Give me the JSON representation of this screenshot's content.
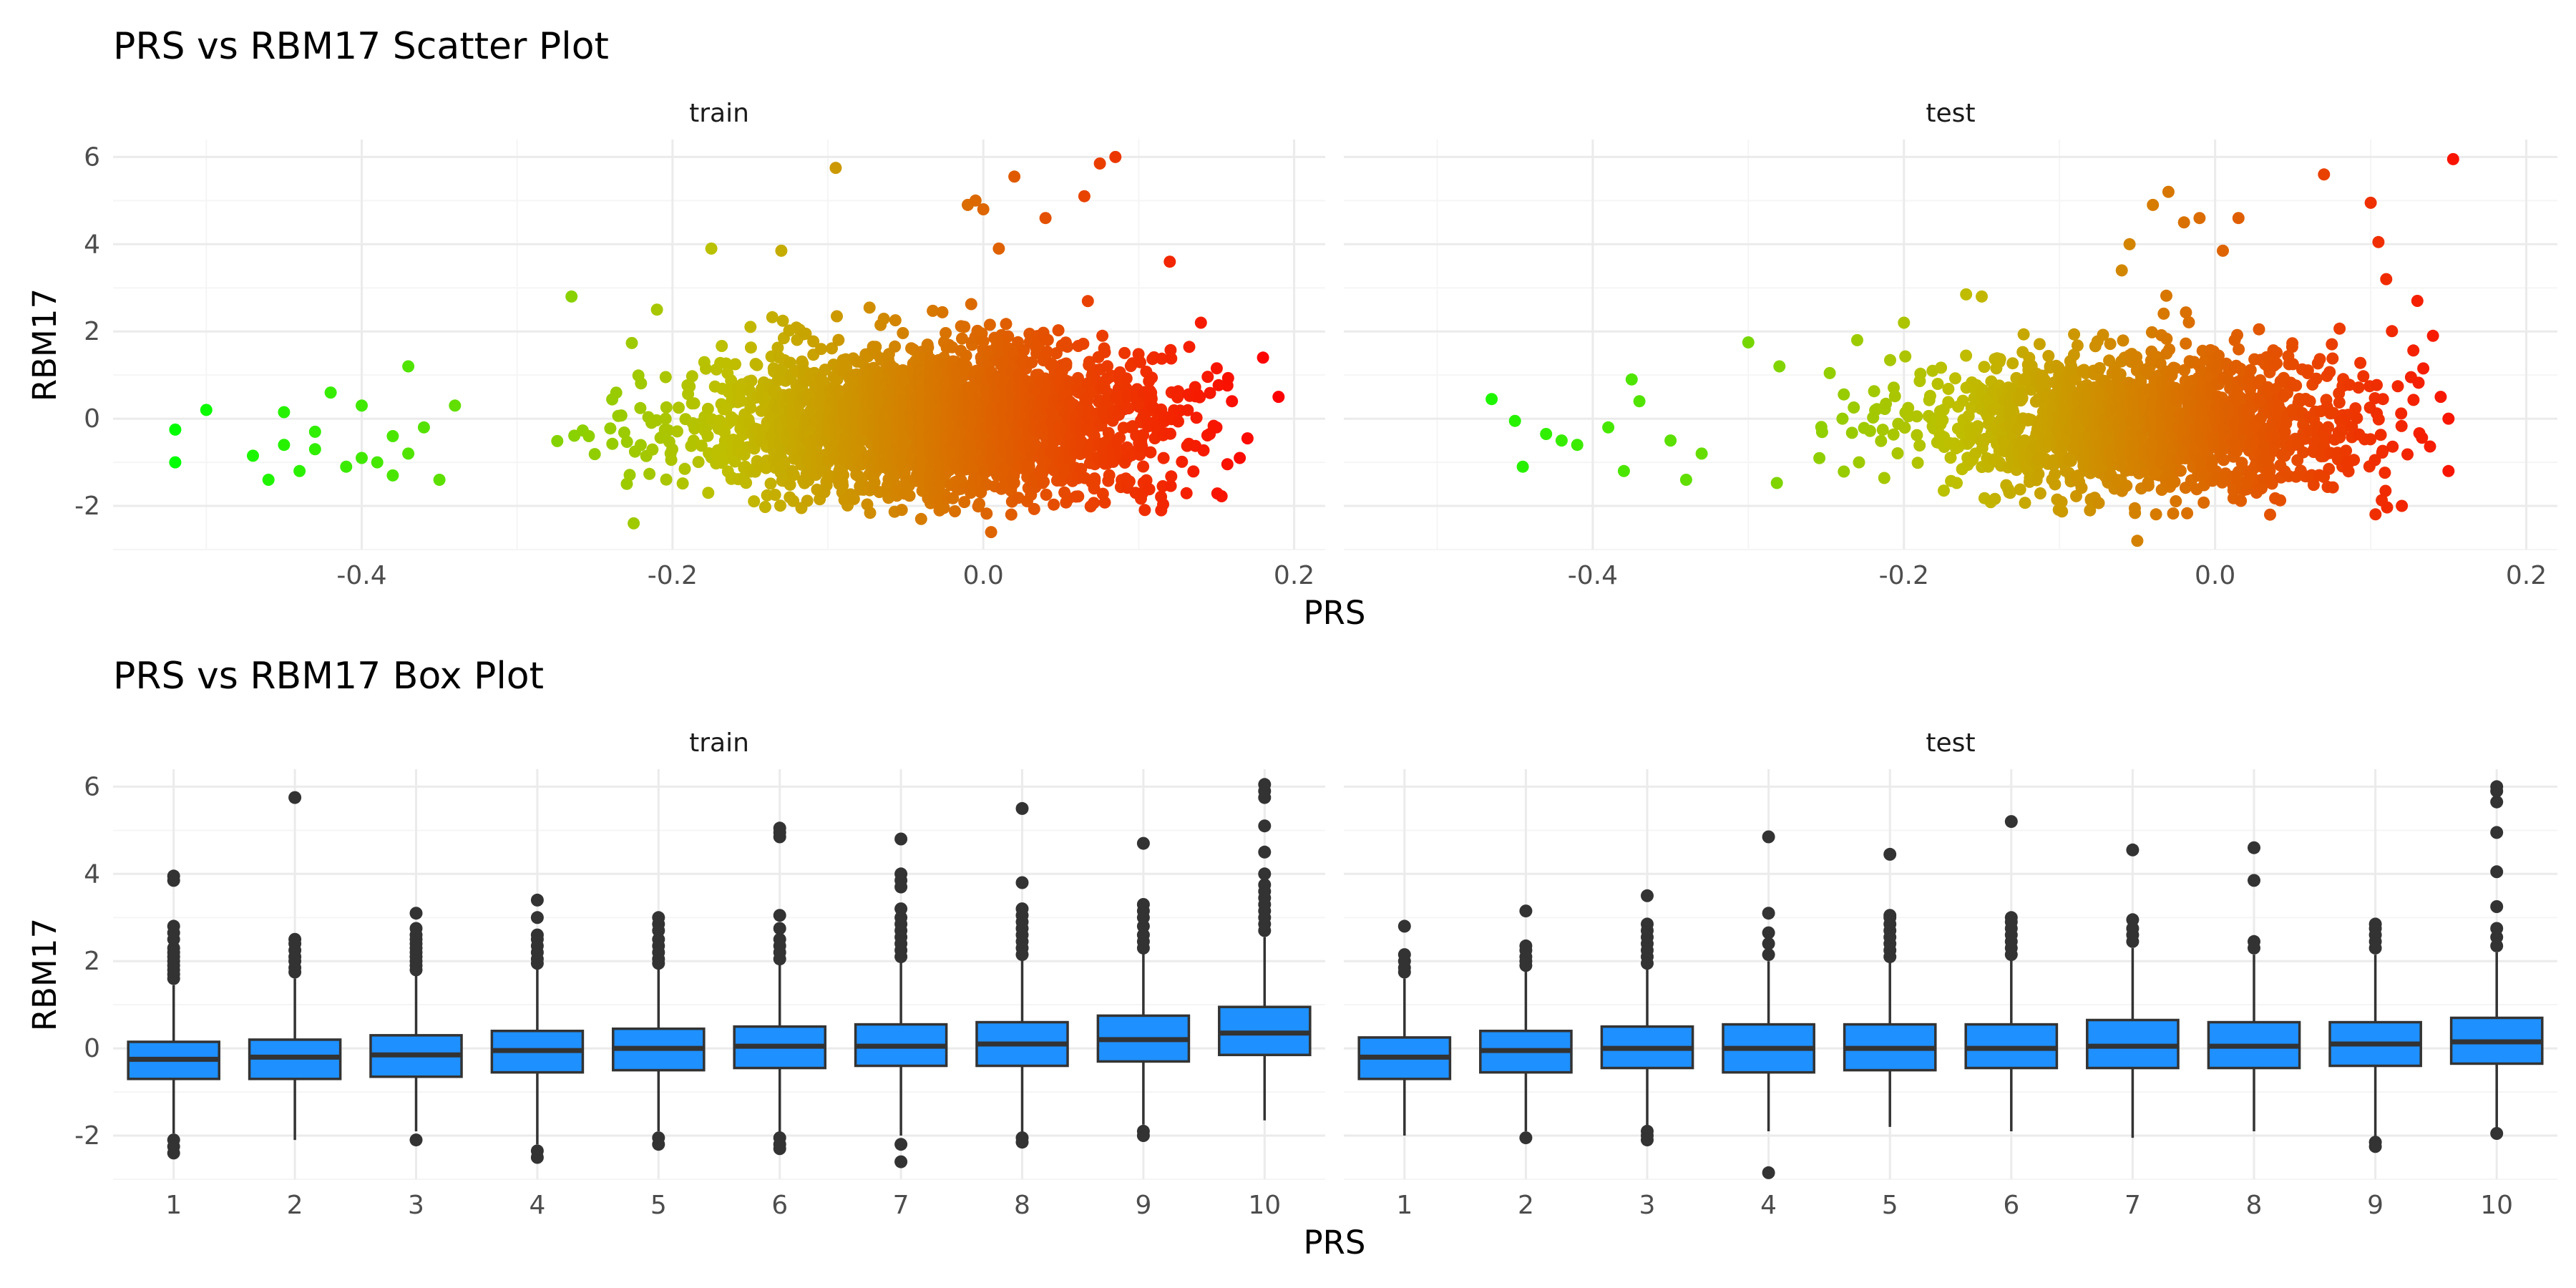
{
  "figure": {
    "scatter_title": "PRS vs RBM17 Scatter Plot",
    "box_title": "PRS vs RBM17 Box Plot",
    "facets": [
      "train",
      "test"
    ],
    "xlabel": "PRS",
    "ylabel": "RBM17"
  },
  "colors": {
    "box_fill": "#1E90FF",
    "box_line": "#333333",
    "grid_major": "#EBEBEB",
    "grid_minor": "#F5F5F5",
    "gradient_low": "#00FF00",
    "gradient_mid": "#BFBF00",
    "gradient_high": "#FF0000"
  },
  "chart_data": [
    {
      "type": "scatter",
      "title": "PRS vs RBM17 Scatter Plot",
      "xlabel": "PRS",
      "ylabel": "RBM17",
      "xlim": [
        -0.56,
        0.22
      ],
      "ylim": [
        -3.0,
        6.4
      ],
      "x_ticks": [
        -0.4,
        -0.2,
        0.0,
        0.2
      ],
      "x_tick_labels": [
        "-0.4",
        "-0.2",
        "0.0",
        "0.2"
      ],
      "y_ticks": [
        -2,
        0,
        2,
        4,
        6
      ],
      "y_tick_labels": [
        "-2",
        "0",
        "2",
        "4",
        "6"
      ],
      "grid": true,
      "legend": "none",
      "color_encoding": "gradient green to red by PRS",
      "facets": [
        {
          "name": "train",
          "cloud": {
            "x_mean": -0.03,
            "x_sd": 0.075,
            "x_min": -0.36,
            "x_max": 0.16,
            "y_mean": -0.1,
            "y_sd": 0.75,
            "y_min": -2.2,
            "y_max": 3.1,
            "count": 2600
          },
          "points": [
            {
              "x": -0.52,
              "y": -0.25
            },
            {
              "x": -0.52,
              "y": -1.0
            },
            {
              "x": -0.5,
              "y": 0.2
            },
            {
              "x": -0.47,
              "y": -0.85
            },
            {
              "x": -0.46,
              "y": -1.4
            },
            {
              "x": -0.45,
              "y": -0.6
            },
            {
              "x": -0.45,
              "y": 0.15
            },
            {
              "x": -0.44,
              "y": -1.2
            },
            {
              "x": -0.43,
              "y": -0.3
            },
            {
              "x": -0.43,
              "y": -0.7
            },
            {
              "x": -0.42,
              "y": 0.6
            },
            {
              "x": -0.41,
              "y": -1.1
            },
            {
              "x": -0.4,
              "y": 0.3
            },
            {
              "x": -0.4,
              "y": -0.9
            },
            {
              "x": -0.39,
              "y": -1.0
            },
            {
              "x": -0.38,
              "y": -0.4
            },
            {
              "x": -0.38,
              "y": -1.3
            },
            {
              "x": -0.37,
              "y": 1.2
            },
            {
              "x": -0.37,
              "y": -0.8
            },
            {
              "x": -0.36,
              "y": -0.2
            },
            {
              "x": -0.35,
              "y": -1.4
            },
            {
              "x": -0.34,
              "y": 0.3
            },
            {
              "x": -0.265,
              "y": 2.8
            },
            {
              "x": -0.225,
              "y": -2.4
            },
            {
              "x": -0.21,
              "y": 2.5
            },
            {
              "x": -0.175,
              "y": 3.9
            },
            {
              "x": -0.13,
              "y": 3.85
            },
            {
              "x": -0.095,
              "y": 5.75
            },
            {
              "x": -0.04,
              "y": -2.3
            },
            {
              "x": -0.01,
              "y": 4.9
            },
            {
              "x": -0.005,
              "y": 5.0
            },
            {
              "x": 0.0,
              "y": 4.8
            },
            {
              "x": 0.005,
              "y": -2.6
            },
            {
              "x": 0.01,
              "y": 3.9
            },
            {
              "x": 0.02,
              "y": 5.55
            },
            {
              "x": 0.04,
              "y": 4.6
            },
            {
              "x": 0.065,
              "y": 5.1
            },
            {
              "x": 0.075,
              "y": 5.85
            },
            {
              "x": 0.085,
              "y": 6.0
            },
            {
              "x": 0.12,
              "y": 3.6
            },
            {
              "x": 0.14,
              "y": 2.2
            },
            {
              "x": 0.15,
              "y": -0.2
            },
            {
              "x": 0.16,
              "y": 0.4
            },
            {
              "x": 0.165,
              "y": -0.9
            },
            {
              "x": 0.17,
              "y": -0.45
            },
            {
              "x": 0.18,
              "y": 1.4
            },
            {
              "x": 0.19,
              "y": 0.5
            }
          ]
        },
        {
          "name": "test",
          "cloud": {
            "x_mean": -0.04,
            "x_sd": 0.07,
            "x_min": -0.3,
            "x_max": 0.14,
            "y_mean": -0.1,
            "y_sd": 0.75,
            "y_min": -2.2,
            "y_max": 3.1,
            "count": 1600
          },
          "points": [
            {
              "x": -0.465,
              "y": 0.45
            },
            {
              "x": -0.45,
              "y": -0.05
            },
            {
              "x": -0.445,
              "y": -1.1
            },
            {
              "x": -0.43,
              "y": -0.35
            },
            {
              "x": -0.42,
              "y": -0.5
            },
            {
              "x": -0.41,
              "y": -0.6
            },
            {
              "x": -0.39,
              "y": -0.2
            },
            {
              "x": -0.38,
              "y": -1.2
            },
            {
              "x": -0.375,
              "y": 0.9
            },
            {
              "x": -0.37,
              "y": 0.4
            },
            {
              "x": -0.35,
              "y": -0.5
            },
            {
              "x": -0.34,
              "y": -1.4
            },
            {
              "x": -0.33,
              "y": -0.8
            },
            {
              "x": -0.3,
              "y": 1.75
            },
            {
              "x": -0.28,
              "y": 1.2
            },
            {
              "x": -0.23,
              "y": 1.8
            },
            {
              "x": -0.2,
              "y": 2.2
            },
            {
              "x": -0.16,
              "y": 2.85
            },
            {
              "x": -0.15,
              "y": 2.8
            },
            {
              "x": -0.06,
              "y": 3.4
            },
            {
              "x": -0.055,
              "y": 4.0
            },
            {
              "x": -0.04,
              "y": 4.9
            },
            {
              "x": -0.03,
              "y": 5.2
            },
            {
              "x": -0.02,
              "y": 4.5
            },
            {
              "x": -0.01,
              "y": 4.6
            },
            {
              "x": 0.005,
              "y": 3.85
            },
            {
              "x": 0.015,
              "y": 4.6
            },
            {
              "x": -0.05,
              "y": -2.8
            },
            {
              "x": 0.07,
              "y": 5.6
            },
            {
              "x": 0.1,
              "y": 4.95
            },
            {
              "x": 0.105,
              "y": 4.05
            },
            {
              "x": 0.11,
              "y": 3.2
            },
            {
              "x": 0.13,
              "y": 2.7
            },
            {
              "x": 0.14,
              "y": 1.9
            },
            {
              "x": 0.145,
              "y": 0.5
            },
            {
              "x": 0.15,
              "y": -1.2
            },
            {
              "x": 0.15,
              "y": 0.0
            },
            {
              "x": 0.12,
              "y": -2.0
            },
            {
              "x": 0.153,
              "y": 5.95
            }
          ]
        }
      ]
    },
    {
      "type": "box",
      "title": "PRS vs RBM17 Box Plot",
      "xlabel": "PRS",
      "ylabel": "RBM17",
      "categories": [
        "1",
        "2",
        "3",
        "4",
        "5",
        "6",
        "7",
        "8",
        "9",
        "10"
      ],
      "ylim": [
        -3.0,
        6.4
      ],
      "y_ticks": [
        -2,
        0,
        2,
        4,
        6
      ],
      "y_tick_labels": [
        "-2",
        "0",
        "2",
        "4",
        "6"
      ],
      "grid": true,
      "facets": [
        {
          "name": "train",
          "boxes": [
            {
              "category": "1",
              "q1": -0.7,
              "median": -0.25,
              "q3": 0.15,
              "lower_whisker": -1.95,
              "upper_whisker": 1.45,
              "outliers": [
                -2.1,
                -2.25,
                -2.4,
                1.6,
                1.7,
                1.8,
                1.9,
                2.0,
                2.1,
                2.2,
                2.3,
                2.5,
                2.65,
                2.8,
                3.85,
                3.95
              ]
            },
            {
              "category": "2",
              "q1": -0.7,
              "median": -0.2,
              "q3": 0.2,
              "lower_whisker": -2.1,
              "upper_whisker": 1.6,
              "outliers": [
                1.75,
                1.85,
                2.0,
                2.1,
                2.25,
                2.4,
                2.5,
                5.75
              ]
            },
            {
              "category": "3",
              "q1": -0.65,
              "median": -0.15,
              "q3": 0.3,
              "lower_whisker": -1.9,
              "upper_whisker": 1.7,
              "outliers": [
                -2.1,
                1.8,
                1.9,
                2.0,
                2.1,
                2.2,
                2.3,
                2.4,
                2.5,
                2.6,
                2.75,
                3.1
              ]
            },
            {
              "category": "4",
              "q1": -0.55,
              "median": -0.05,
              "q3": 0.4,
              "lower_whisker": -2.2,
              "upper_whisker": 1.85,
              "outliers": [
                -2.35,
                -2.5,
                1.95,
                2.05,
                2.2,
                2.35,
                2.5,
                2.6,
                3.0,
                3.4
              ]
            },
            {
              "category": "5",
              "q1": -0.5,
              "median": 0.0,
              "q3": 0.45,
              "lower_whisker": -1.9,
              "upper_whisker": 1.85,
              "outliers": [
                -2.05,
                -2.2,
                1.95,
                2.05,
                2.2,
                2.35,
                2.5,
                2.7,
                2.85,
                3.0
              ]
            },
            {
              "category": "6",
              "q1": -0.45,
              "median": 0.05,
              "q3": 0.5,
              "lower_whisker": -1.95,
              "upper_whisker": 1.95,
              "outliers": [
                -2.05,
                -2.2,
                -2.3,
                2.05,
                2.2,
                2.35,
                2.5,
                2.75,
                3.05,
                4.85,
                4.95,
                5.05
              ]
            },
            {
              "category": "7",
              "q1": -0.4,
              "median": 0.05,
              "q3": 0.55,
              "lower_whisker": -2.0,
              "upper_whisker": 2.0,
              "outliers": [
                -2.2,
                -2.6,
                2.1,
                2.25,
                2.4,
                2.55,
                2.7,
                2.85,
                3.0,
                3.2,
                3.7,
                3.85,
                4.0,
                4.8
              ]
            },
            {
              "category": "8",
              "q1": -0.4,
              "median": 0.1,
              "q3": 0.6,
              "lower_whisker": -1.95,
              "upper_whisker": 2.05,
              "outliers": [
                -2.05,
                -2.15,
                2.15,
                2.3,
                2.45,
                2.6,
                2.75,
                2.9,
                3.05,
                3.2,
                3.8,
                5.5
              ]
            },
            {
              "category": "9",
              "q1": -0.3,
              "median": 0.2,
              "q3": 0.75,
              "lower_whisker": -1.75,
              "upper_whisker": 2.2,
              "outliers": [
                -1.9,
                -2.0,
                2.3,
                2.45,
                2.6,
                2.8,
                3.0,
                3.15,
                3.3,
                4.7
              ]
            },
            {
              "category": "10",
              "q1": -0.15,
              "median": 0.35,
              "q3": 0.95,
              "lower_whisker": -1.65,
              "upper_whisker": 2.55,
              "outliers": [
                2.7,
                2.85,
                3.0,
                3.15,
                3.3,
                3.45,
                3.6,
                3.75,
                4.0,
                4.5,
                5.1,
                5.75,
                5.9,
                6.05
              ]
            }
          ]
        },
        {
          "name": "test",
          "boxes": [
            {
              "category": "1",
              "q1": -0.7,
              "median": -0.2,
              "q3": 0.25,
              "lower_whisker": -2.0,
              "upper_whisker": 1.6,
              "outliers": [
                1.75,
                1.85,
                2.0,
                2.15,
                2.8
              ]
            },
            {
              "category": "2",
              "q1": -0.55,
              "median": -0.05,
              "q3": 0.4,
              "lower_whisker": -1.9,
              "upper_whisker": 1.8,
              "outliers": [
                -2.05,
                1.9,
                2.0,
                2.1,
                2.25,
                2.35,
                3.15
              ]
            },
            {
              "category": "3",
              "q1": -0.45,
              "median": 0.0,
              "q3": 0.5,
              "lower_whisker": -1.8,
              "upper_whisker": 1.85,
              "outliers": [
                -1.9,
                -2.0,
                -2.1,
                1.95,
                2.1,
                2.25,
                2.4,
                2.55,
                2.7,
                2.85,
                3.5
              ]
            },
            {
              "category": "4",
              "q1": -0.55,
              "median": 0.0,
              "q3": 0.55,
              "lower_whisker": -1.9,
              "upper_whisker": 2.0,
              "outliers": [
                -2.85,
                2.15,
                2.4,
                2.65,
                3.1,
                4.85
              ]
            },
            {
              "category": "5",
              "q1": -0.5,
              "median": 0.0,
              "q3": 0.55,
              "lower_whisker": -1.8,
              "upper_whisker": 2.0,
              "outliers": [
                2.1,
                2.25,
                2.4,
                2.55,
                2.7,
                2.85,
                3.0,
                3.05,
                4.45
              ]
            },
            {
              "category": "6",
              "q1": -0.45,
              "median": 0.0,
              "q3": 0.55,
              "lower_whisker": -1.9,
              "upper_whisker": 2.05,
              "outliers": [
                2.15,
                2.3,
                2.45,
                2.6,
                2.75,
                2.9,
                3.0,
                5.2
              ]
            },
            {
              "category": "7",
              "q1": -0.45,
              "median": 0.05,
              "q3": 0.65,
              "lower_whisker": -2.05,
              "upper_whisker": 2.3,
              "outliers": [
                2.45,
                2.6,
                2.75,
                2.95,
                4.55
              ]
            },
            {
              "category": "8",
              "q1": -0.45,
              "median": 0.05,
              "q3": 0.6,
              "lower_whisker": -1.9,
              "upper_whisker": 2.15,
              "outliers": [
                2.3,
                2.45,
                3.85,
                4.6
              ]
            },
            {
              "category": "9",
              "q1": -0.4,
              "median": 0.1,
              "q3": 0.6,
              "lower_whisker": -2.05,
              "upper_whisker": 2.15,
              "outliers": [
                -2.15,
                -2.25,
                2.3,
                2.45,
                2.6,
                2.75,
                2.85
              ]
            },
            {
              "category": "10",
              "q1": -0.35,
              "median": 0.15,
              "q3": 0.7,
              "lower_whisker": -1.85,
              "upper_whisker": 2.2,
              "outliers": [
                -1.95,
                2.35,
                2.55,
                2.75,
                3.25,
                4.05,
                4.95,
                5.65,
                5.9,
                6.0
              ]
            }
          ]
        }
      ]
    }
  ]
}
